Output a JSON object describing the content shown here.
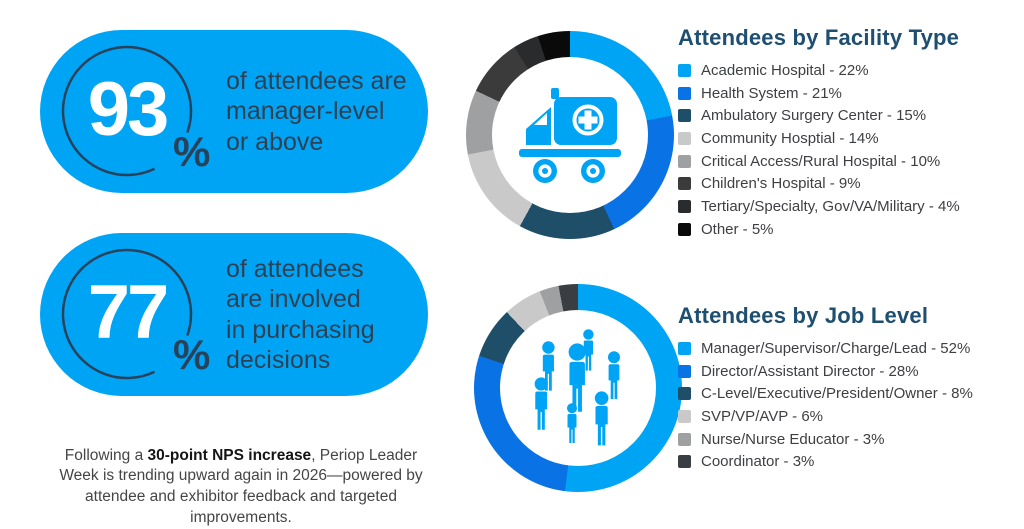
{
  "stats": [
    {
      "value": "93",
      "unit": "%",
      "description": "of attendees are\nmanager-level\nor above"
    },
    {
      "value": "77",
      "unit": "%",
      "description": "of attendees\nare involved\nin purchasing\ndecisions"
    }
  ],
  "footer": {
    "prefix": "Following a ",
    "bold": "30-point NPS increase",
    "suffix": ", Periop Leader Week is trending upward again in 2026—powered by attendee and exhibitor feedback and targeted improvements."
  },
  "chart_data": [
    {
      "type": "pie",
      "title": "Attendees by Facility Type",
      "center_icon": "ambulance-icon",
      "legend_position": "right",
      "start_angle_deg": 0,
      "segments": [
        {
          "label": "Academic Hospital",
          "value": 22,
          "color": "#00A4F5"
        },
        {
          "label": "Health System",
          "value": 21,
          "color": "#0973E6"
        },
        {
          "label": "Ambulatory Surgery Center",
          "value": 15,
          "color": "#1F4E69"
        },
        {
          "label": "Community Hosptial",
          "value": 14,
          "color": "#C9C9CA"
        },
        {
          "label": "Critical Access/Rural Hospital",
          "value": 10,
          "color": "#9EA0A2"
        },
        {
          "label": "Children's Hospital",
          "value": 9,
          "color": "#3B3B3B"
        },
        {
          "label": "Tertiary/Specialty, Gov/VA/Military",
          "value": 4,
          "color": "#2A2B2D"
        },
        {
          "label": "Other",
          "value": 5,
          "color": "#0A0A0B"
        }
      ]
    },
    {
      "type": "pie",
      "title": "Attendees by Job Level",
      "center_icon": "people-group-icon",
      "legend_position": "right",
      "start_angle_deg": 0,
      "segments": [
        {
          "label": "Manager/Supervisor/Charge/Lead",
          "value": 52,
          "color": "#00A4F5"
        },
        {
          "label": "Director/Assistant Director",
          "value": 28,
          "color": "#0973E6"
        },
        {
          "label": "C-Level/Executive/President/Owner",
          "value": 8,
          "color": "#1F4E69"
        },
        {
          "label": "SVP/VP/AVP",
          "value": 6,
          "color": "#C9C9CA"
        },
        {
          "label": "Nurse/Nurse Educator",
          "value": 3,
          "color": "#9EA0A2"
        },
        {
          "label": "Coordinator",
          "value": 3,
          "color": "#3A3E43"
        }
      ]
    }
  ],
  "colors": {
    "accent_blue": "#00A4F5",
    "secondary_blue": "#0973E6",
    "navy": "#1F4E69",
    "title_navy": "#1E4E70",
    "stat_text": "#2E4154",
    "legend_text": "#3E3F42"
  }
}
